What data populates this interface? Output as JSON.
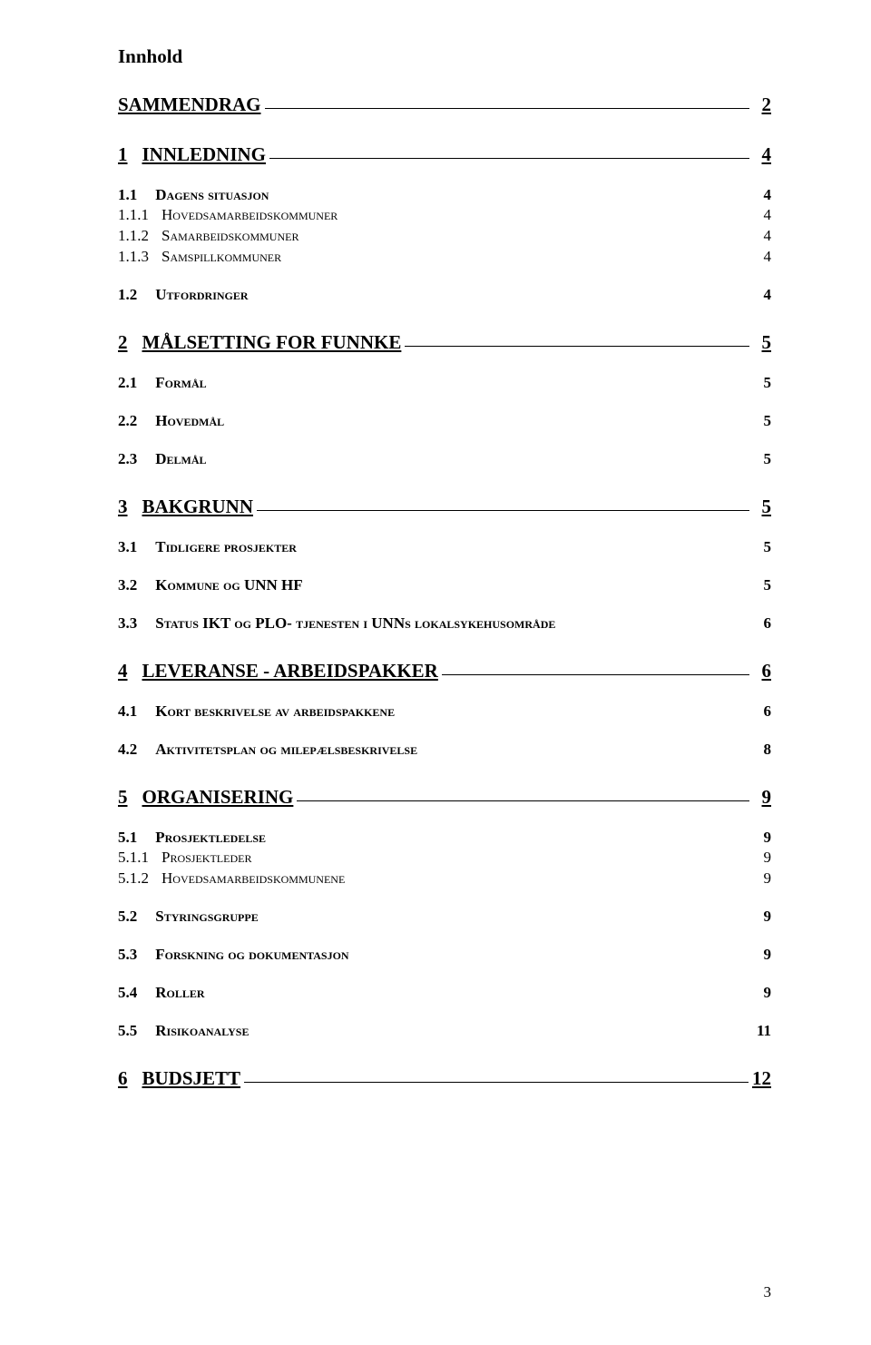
{
  "title": "Innhold",
  "page_number": "3",
  "entries": [
    {
      "level": 1,
      "num": "",
      "label": "SAMMENDRAG",
      "page": "2",
      "first": true
    },
    {
      "level": 1,
      "num": "1",
      "label": "INNLEDNING",
      "page": "4"
    },
    {
      "level": 2,
      "num": "1.1",
      "label": "Dagens situasjon",
      "page": "4"
    },
    {
      "level": 3,
      "num": "1.1.1",
      "label": "Hovedsamarbeidskommuner",
      "page": "4"
    },
    {
      "level": 3,
      "num": "1.1.2",
      "label": "Samarbeidskommuner",
      "page": "4"
    },
    {
      "level": 3,
      "num": "1.1.3",
      "label": "Samspillkommuner",
      "page": "4"
    },
    {
      "level": 2,
      "num": "1.2",
      "label": "Utfordringer",
      "page": "4"
    },
    {
      "level": 1,
      "num": "2",
      "label": "MÅLSETTING FOR FUNNKE",
      "page": "5"
    },
    {
      "level": 2,
      "num": "2.1",
      "label": "Formål",
      "page": "5"
    },
    {
      "level": 2,
      "num": "2.2",
      "label": "Hovedmål",
      "page": "5"
    },
    {
      "level": 2,
      "num": "2.3",
      "label": "Delmål",
      "page": "5"
    },
    {
      "level": 1,
      "num": "3",
      "label": "BAKGRUNN",
      "page": "5"
    },
    {
      "level": 2,
      "num": "3.1",
      "label": "Tidligere prosjekter",
      "page": "5"
    },
    {
      "level": 2,
      "num": "3.2",
      "label": "Kommune og UNN HF",
      "page": "5"
    },
    {
      "level": 2,
      "num": "3.3",
      "label": "Status IKT og PLO- tjenesten i UNNs lokalsykehusområde",
      "page": "6"
    },
    {
      "level": 1,
      "num": "4",
      "label": "LEVERANSE - ARBEIDSPAKKER",
      "page": "6"
    },
    {
      "level": 2,
      "num": "4.1",
      "label": "Kort beskrivelse av arbeidspakkene",
      "page": "6"
    },
    {
      "level": 2,
      "num": "4.2",
      "label": "Aktivitetsplan og milepælsbeskrivelse",
      "page": "8"
    },
    {
      "level": 1,
      "num": "5",
      "label": "ORGANISERING",
      "page": "9"
    },
    {
      "level": 2,
      "num": "5.1",
      "label": "Prosjektledelse",
      "page": "9"
    },
    {
      "level": 3,
      "num": "5.1.1",
      "label": "Prosjektleder",
      "page": "9"
    },
    {
      "level": 3,
      "num": "5.1.2",
      "label": "Hovedsamarbeidskommunene",
      "page": "9"
    },
    {
      "level": 2,
      "num": "5.2",
      "label": "Styringsgruppe",
      "page": "9"
    },
    {
      "level": 2,
      "num": "5.3",
      "label": "Forskning og dokumentasjon",
      "page": "9"
    },
    {
      "level": 2,
      "num": "5.4",
      "label": " Roller",
      "page": "9"
    },
    {
      "level": 2,
      "num": "5.5",
      "label": "Risikoanalyse",
      "page": "11"
    },
    {
      "level": 1,
      "num": "6",
      "label": "BUDSJETT",
      "page": "12"
    }
  ]
}
